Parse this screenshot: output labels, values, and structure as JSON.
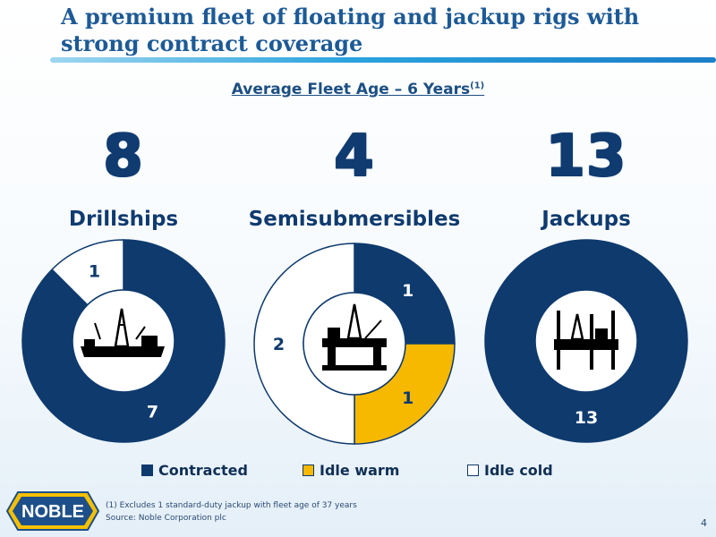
{
  "title": "A premium fleet of floating and jackup rigs with strong contract coverage",
  "subtitle": "Average Fleet Age – 6 Years",
  "subtitle_note": "(1)",
  "colors": {
    "contracted": "#0e3a6e",
    "idle_warm": "#f7b900",
    "idle_cold": "#ffffff",
    "title": "#1d5a96"
  },
  "chart_data": [
    {
      "type": "pie",
      "title": "Drillships",
      "total": "8",
      "icon": "drillship-icon",
      "slices": [
        {
          "name": "Contracted",
          "value": 7,
          "label": "7"
        },
        {
          "name": "Idle warm",
          "value": 0,
          "label": ""
        },
        {
          "name": "Idle cold",
          "value": 1,
          "label": "1"
        }
      ],
      "legend": "bottom"
    },
    {
      "type": "pie",
      "title": "Semisubmersibles",
      "total": "4",
      "icon": "semisubmersible-icon",
      "slices": [
        {
          "name": "Contracted",
          "value": 1,
          "label": "1"
        },
        {
          "name": "Idle warm",
          "value": 1,
          "label": "1"
        },
        {
          "name": "Idle cold",
          "value": 2,
          "label": "2"
        }
      ],
      "legend": "bottom"
    },
    {
      "type": "pie",
      "title": "Jackups",
      "total": "13",
      "icon": "jackup-icon",
      "slices": [
        {
          "name": "Contracted",
          "value": 13,
          "label": "13"
        },
        {
          "name": "Idle warm",
          "value": 0,
          "label": ""
        },
        {
          "name": "Idle cold",
          "value": 0,
          "label": ""
        }
      ],
      "legend": "bottom"
    }
  ],
  "legend": [
    {
      "label": "Contracted",
      "color": "#0e3a6e"
    },
    {
      "label": "Idle warm",
      "color": "#f7b900"
    },
    {
      "label": "Idle cold",
      "color": "#ffffff"
    }
  ],
  "footnote": "(1)  Excludes 1 standard-duty jackup with fleet age of 37 years",
  "source": "Source: Noble Corporation plc",
  "page_number": "4",
  "logo_text": "NOBLE"
}
